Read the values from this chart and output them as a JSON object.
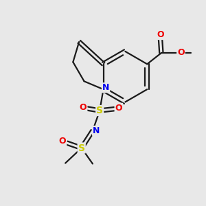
{
  "bg_color": "#e8e8e8",
  "bond_color": "#1a1a1a",
  "atom_colors": {
    "N": "#0000ee",
    "S": "#cccc00",
    "O": "#ee0000",
    "C": "#1a1a1a"
  },
  "fig_size": [
    3.0,
    3.0
  ],
  "dpi": 100,
  "xlim": [
    0,
    10
  ],
  "ylim": [
    0,
    10
  ]
}
